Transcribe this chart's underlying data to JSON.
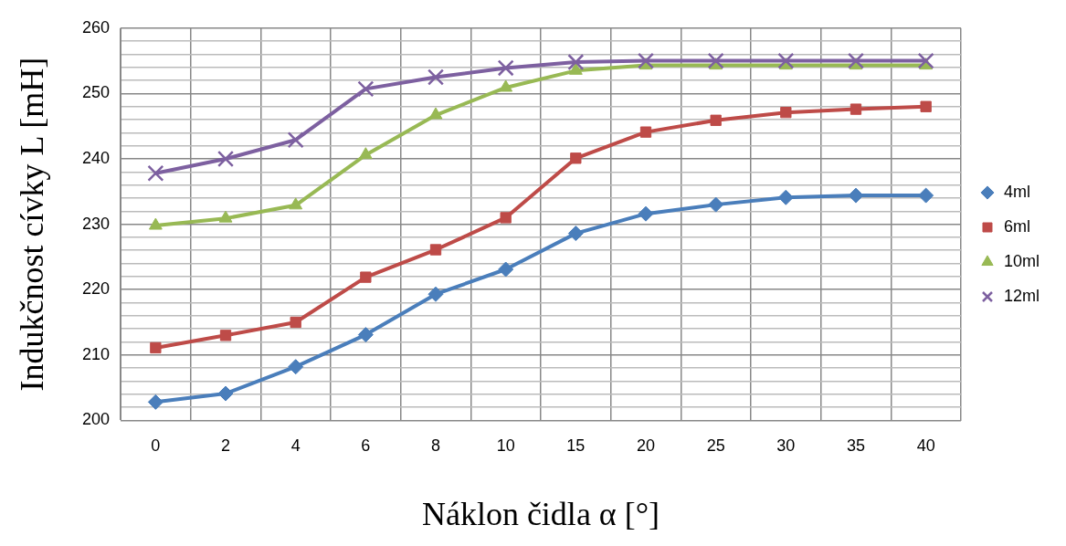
{
  "chart_data": {
    "type": "line",
    "xlabel": "Náklon čidla α [°]",
    "ylabel": "Indukčnost cívky L [mH]",
    "categories": [
      "0",
      "2",
      "4",
      "6",
      "8",
      "10",
      "15",
      "20",
      "25",
      "30",
      "35",
      "40"
    ],
    "series": [
      {
        "name": "4ml",
        "color": "#4a7ebb",
        "marker": "diamond",
        "values": [
          202.8,
          204.1,
          208.2,
          213.1,
          219.3,
          223.1,
          228.6,
          231.6,
          233.0,
          234.1,
          234.4,
          234.4
        ]
      },
      {
        "name": "6ml",
        "color": "#be4b48",
        "marker": "square",
        "values": [
          211.1,
          213.0,
          215.0,
          221.9,
          226.1,
          231.0,
          240.1,
          244.1,
          245.9,
          247.1,
          247.6,
          248.0
        ]
      },
      {
        "name": "10ml",
        "color": "#98b954",
        "marker": "triangle",
        "values": [
          229.8,
          230.9,
          232.9,
          240.6,
          246.7,
          250.9,
          253.5,
          254.3,
          254.3,
          254.3,
          254.3,
          254.3
        ]
      },
      {
        "name": "12ml",
        "color": "#7d60a0",
        "marker": "cross",
        "values": [
          237.8,
          240.0,
          242.9,
          250.7,
          252.5,
          253.9,
          254.8,
          255.0,
          255.0,
          255.0,
          255.0,
          255.0
        ]
      }
    ],
    "ylim": [
      200,
      260
    ],
    "yticks": [
      200,
      {
        "value": 202,
        "label": null
      },
      {
        "value": 204,
        "label": null
      },
      {
        "value": 206,
        "label": null
      },
      {
        "value": 208,
        "label": null
      },
      210,
      {
        "value": 212,
        "label": null
      },
      {
        "value": 214,
        "label": null
      },
      {
        "value": 216,
        "label": null
      },
      {
        "value": 218,
        "label": null
      },
      220,
      {
        "value": 222,
        "label": null
      },
      {
        "value": 224,
        "label": null
      },
      {
        "value": 226,
        "label": null
      },
      {
        "value": 228,
        "label": null
      },
      230,
      {
        "value": 232,
        "label": null
      },
      {
        "value": 234,
        "label": null
      },
      {
        "value": 236,
        "label": null
      },
      {
        "value": 238,
        "label": null
      },
      240,
      {
        "value": 242,
        "label": null
      },
      {
        "value": 244,
        "label": null
      },
      {
        "value": 246,
        "label": null
      },
      {
        "value": 248,
        "label": null
      },
      250,
      {
        "value": 252,
        "label": null
      },
      {
        "value": 254,
        "label": null
      },
      {
        "value": 256,
        "label": null
      },
      {
        "value": 258,
        "label": null
      },
      260
    ],
    "grid": true,
    "legend": "right"
  }
}
